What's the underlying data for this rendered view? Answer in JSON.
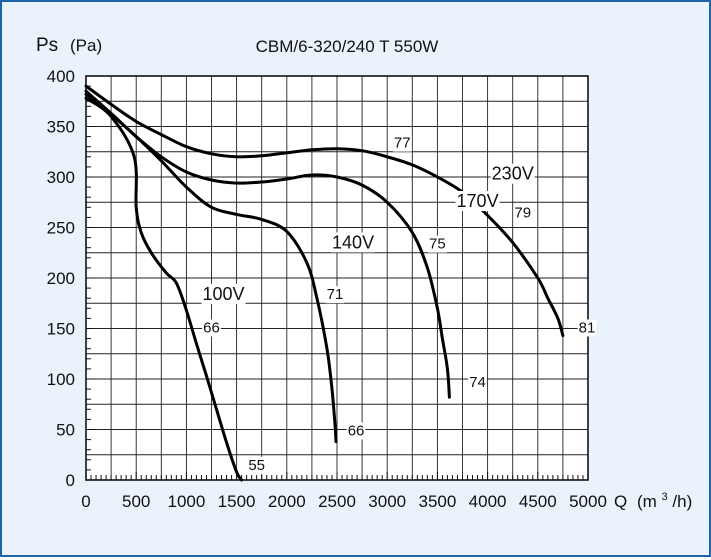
{
  "chart_data": {
    "type": "line",
    "title": "CBM/6-320/240 T 550W",
    "ylabel": "Ps",
    "ylabel_unit": "(Pa)",
    "xlabel": "Q",
    "xlabel_unit_base": "(m",
    "xlabel_unit_exp": "3",
    "xlabel_unit_tail": "/h)",
    "xlim": [
      0,
      5000
    ],
    "ylim": [
      0,
      400
    ],
    "grid": true,
    "x_ticks": [
      "0",
      "500",
      "1000",
      "1500",
      "2000",
      "2500",
      "3000",
      "3500",
      "4000",
      "4500",
      "5000"
    ],
    "y_ticks": [
      "0",
      "50",
      "100",
      "150",
      "200",
      "250",
      "300",
      "350",
      "400"
    ],
    "series": [
      {
        "name": "230V",
        "x": [
          0,
          250,
          500,
          750,
          1000,
          1250,
          1500,
          1750,
          2000,
          2250,
          2500,
          2750,
          3000,
          3250,
          3500,
          3750,
          4000,
          4250,
          4500,
          4600,
          4700,
          4750
        ],
        "y": [
          390,
          372,
          355,
          342,
          330,
          323,
          320,
          321,
          324,
          327,
          328,
          326,
          320,
          312,
          300,
          285,
          262,
          235,
          200,
          180,
          160,
          143
        ]
      },
      {
        "name": "170V",
        "x": [
          0,
          250,
          500,
          750,
          1000,
          1250,
          1500,
          1750,
          2000,
          2250,
          2500,
          2750,
          3000,
          3250,
          3400,
          3500,
          3550,
          3600,
          3620
        ],
        "y": [
          385,
          363,
          340,
          320,
          305,
          297,
          294,
          295,
          298,
          302,
          300,
          292,
          275,
          245,
          210,
          170,
          140,
          110,
          82
        ]
      },
      {
        "name": "140V",
        "x": [
          0,
          250,
          500,
          750,
          1000,
          1250,
          1500,
          1750,
          2000,
          2200,
          2300,
          2400,
          2450,
          2480,
          2490
        ],
        "y": [
          382,
          362,
          340,
          316,
          290,
          270,
          263,
          258,
          246,
          215,
          180,
          130,
          90,
          55,
          38
        ]
      },
      {
        "name": "100V",
        "x": [
          0,
          250,
          480,
          500,
          550,
          650,
          800,
          900,
          1000,
          1100,
          1200,
          1300,
          1400,
          1500,
          1550
        ],
        "y": [
          378,
          360,
          320,
          270,
          245,
          225,
          205,
          195,
          168,
          135,
          103,
          70,
          37,
          8,
          0
        ]
      }
    ],
    "annotations": [
      {
        "text": "230V",
        "x": 4250,
        "y": 302,
        "size": "large"
      },
      {
        "text": "170V",
        "x": 3900,
        "y": 275,
        "size": "large"
      },
      {
        "text": "140V",
        "x": 2660,
        "y": 234,
        "size": "large"
      },
      {
        "text": "100V",
        "x": 1370,
        "y": 183,
        "size": "large"
      },
      {
        "text": "77",
        "x": 3150,
        "y": 333,
        "size": "small"
      },
      {
        "text": "79",
        "x": 4350,
        "y": 264,
        "size": "small"
      },
      {
        "text": "75",
        "x": 3500,
        "y": 233,
        "size": "small"
      },
      {
        "text": "71",
        "x": 2480,
        "y": 183,
        "size": "small"
      },
      {
        "text": "66",
        "x": 1250,
        "y": 150,
        "size": "small"
      },
      {
        "text": "81",
        "x": 4990,
        "y": 150,
        "size": "small"
      },
      {
        "text": "74",
        "x": 3900,
        "y": 96,
        "size": "small"
      },
      {
        "text": "66",
        "x": 2690,
        "y": 48,
        "size": "small"
      },
      {
        "text": "55",
        "x": 1700,
        "y": 14,
        "size": "small"
      }
    ]
  }
}
